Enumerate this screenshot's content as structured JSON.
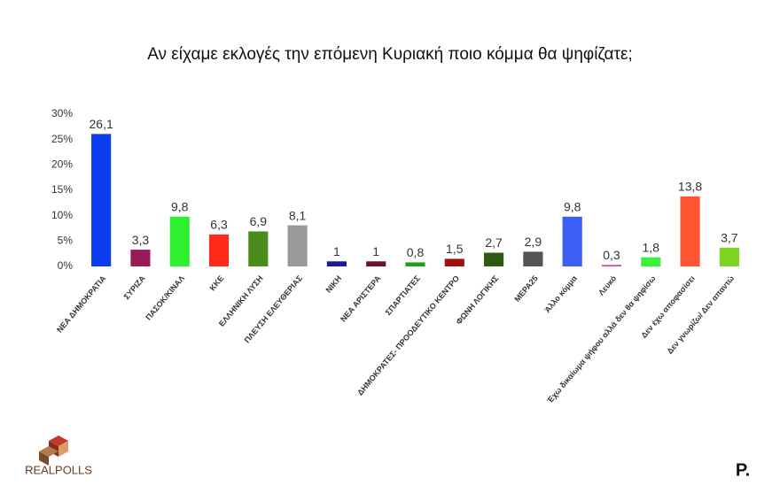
{
  "chart_data": {
    "type": "bar",
    "title": "Αν είχαμε εκλογές την επόμενη Κυριακή ποιο κόμμα θα ψηφίζατε;",
    "categories": [
      "ΝΕΑ ΔΗΜΟΚΡΑΤΙΑ",
      "ΣΥΡΙΖΑ",
      "ΠΑΣΟΚ/ΚΙΝΑΛ",
      "ΚΚΕ",
      "ΕΛΛΗΝΙΚΗ ΛΥΣΗ",
      "ΠΛΕΥΣΗ ΕΛΕΥΘΕΡΙΑΣ",
      "ΝΙΚΗ",
      "ΝΕΑ ΑΡΙΣΤΕΡΑ",
      "ΣΠΑΡΤΙΑΤΕΣ",
      "ΔΗΜΟΚΡΑΤΕΣ- ΠΡΟΟΔΕΥΤΙΚΟ ΚΕΝΤΡΟ",
      "ΦΩΝΗ ΛΟΓΙΚΗΣ",
      "ΜΕΡΑ25",
      "Άλλο κόμμα",
      "Λευκό",
      "Έχω δικαίωμα ψήφου αλλά δεν θα ψηφίσω",
      "Δεν έχω αποφασίσει",
      "Δεν γνωρίζω/ Δεν απαντώ"
    ],
    "values": [
      26.1,
      3.3,
      9.8,
      6.3,
      6.9,
      8.1,
      1,
      1,
      0.8,
      1.5,
      2.7,
      2.9,
      9.8,
      0.3,
      1.8,
      13.8,
      3.7
    ],
    "value_labels": [
      "26,1",
      "3,3",
      "9,8",
      "6,3",
      "6,9",
      "8,1",
      "1",
      "1",
      "0,8",
      "1,5",
      "2,7",
      "2,9",
      "9,8",
      "0,3",
      "1,8",
      "13,8",
      "3,7"
    ],
    "colors": [
      "#0a3cf0",
      "#9b1b5a",
      "#2ef02e",
      "#ff2a1a",
      "#4a8c1c",
      "#999999",
      "#1a1aa0",
      "#6b1030",
      "#1ea01e",
      "#a01010",
      "#2d5a10",
      "#555555",
      "#3c5ef5",
      "#e040a0",
      "#3ef03e",
      "#ff5533",
      "#7ed321"
    ],
    "ylim": [
      0,
      30
    ],
    "yticks": [
      {
        "value": 0,
        "label": "0%"
      },
      {
        "value": 5,
        "label": "5%"
      },
      {
        "value": 10,
        "label": "10%"
      },
      {
        "value": 15,
        "label": "15%"
      },
      {
        "value": 20,
        "label": "20%"
      },
      {
        "value": 25,
        "label": "25%"
      },
      {
        "value": 30,
        "label": "30%"
      }
    ],
    "grid": false
  },
  "logos": {
    "left": "REALPOLLS",
    "right": "P."
  }
}
